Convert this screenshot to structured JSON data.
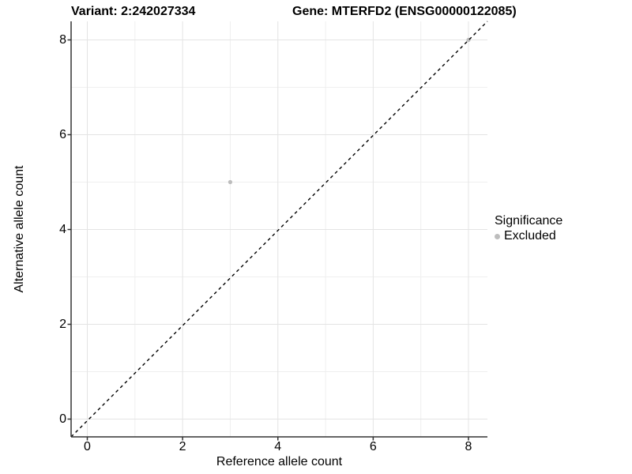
{
  "header": {
    "variant_title": "Variant: 2:242027334",
    "gene_title": "Gene: MTERFD2 (ENSG00000122085)"
  },
  "chart_data": {
    "type": "scatter",
    "title_left": "Variant: 2:242027334",
    "title_right": "Gene: MTERFD2 (ENSG00000122085)",
    "xlabel": "Reference allele count",
    "ylabel": "Alternative allele count",
    "xlim": [
      -0.34,
      8.4
    ],
    "ylim": [
      -0.39,
      8.39
    ],
    "x_ticks": [
      0,
      2,
      4,
      6,
      8
    ],
    "y_ticks": [
      0,
      2,
      4,
      6,
      8
    ],
    "x_minor": [
      1,
      3,
      5,
      7
    ],
    "y_minor": [
      1,
      3,
      5,
      7
    ],
    "grid": "major-and-minor",
    "series": [
      {
        "name": "Excluded",
        "color": "#bdbdbd",
        "points": [
          [
            3,
            5
          ],
          [
            8,
            8
          ]
        ]
      }
    ],
    "reference_line": {
      "type": "identity y=x",
      "style": "dashed",
      "color": "#000000"
    },
    "legend": {
      "title": "Significance",
      "position": "right",
      "items": [
        {
          "label": "Excluded",
          "color": "#bdbdbd"
        }
      ]
    }
  },
  "colors": {
    "background": "#ffffff",
    "grid_major": "#e4e4e4",
    "grid_minor": "#efefef",
    "axis_line": "#333333",
    "point": "#bdbdbd",
    "dashed_line": "#000000",
    "text": "#000000"
  }
}
